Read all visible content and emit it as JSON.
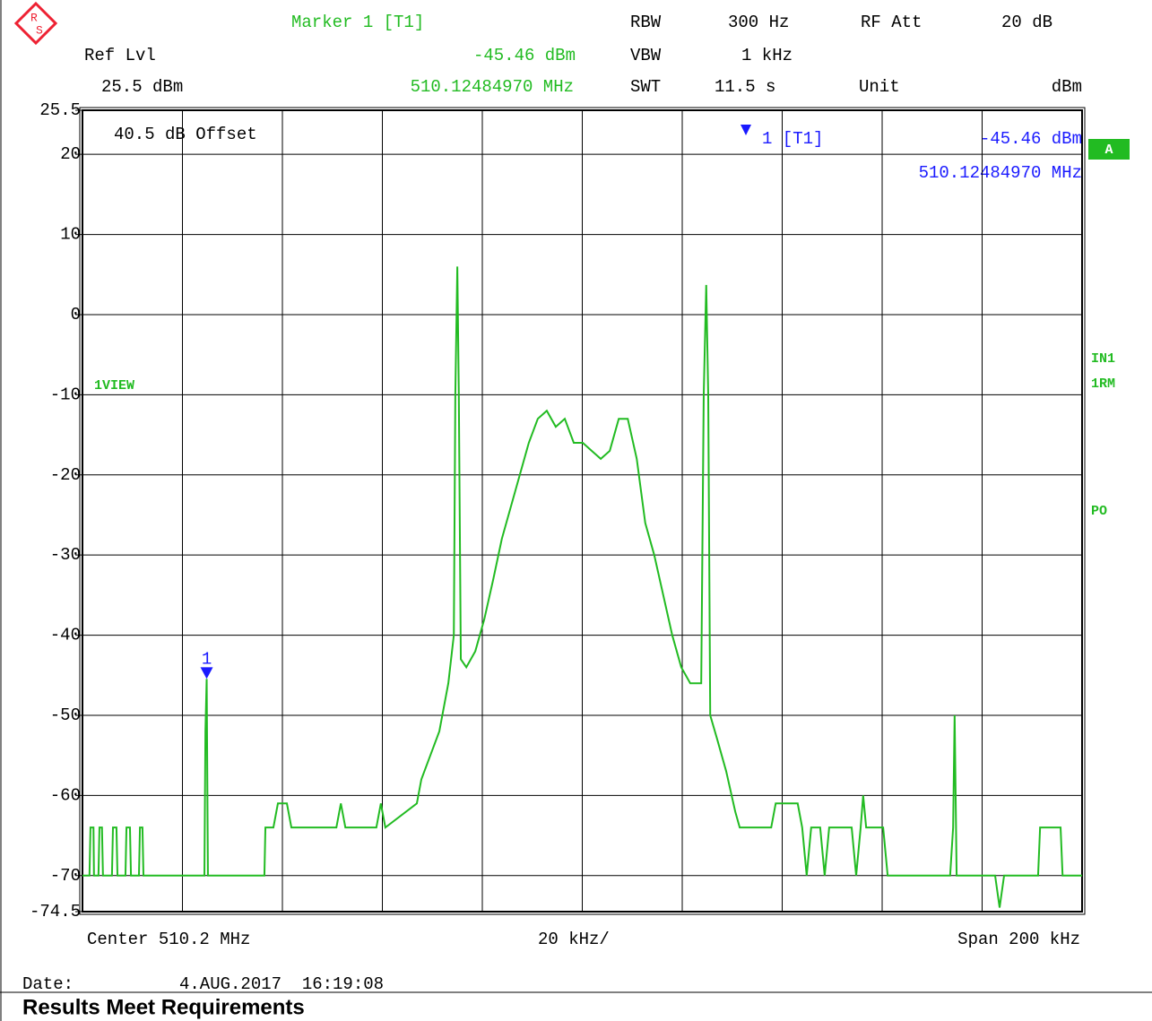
{
  "header": {
    "logo": [
      "R",
      "S"
    ],
    "marker_title": "Marker 1 [T1]",
    "rbw_label": "RBW",
    "rbw": "300 Hz",
    "rfatt_label": "RF Att",
    "rfatt": "20 dB",
    "ref_label": "Ref Lvl",
    "marker_level": "-45.46 dBm",
    "vbw_label": "VBW",
    "vbw": "1 kHz",
    "ref_level": "25.5 dBm",
    "marker_freq": "510.12484970 MHz",
    "swt_label": "SWT",
    "swt": "11.5 s",
    "unit_label": "Unit",
    "unit": "dBm"
  },
  "chart_data": {
    "type": "line",
    "color": "#22bb22",
    "grid": true,
    "offset_note": "40.5 dB Offset",
    "trace_label": "1VIEW",
    "side_labels": [
      "A",
      "IN1",
      "1RM",
      "PO"
    ],
    "marker_info": {
      "name": "1 [T1]",
      "level": "-45.46 dBm",
      "freq": "510.12484970 MHz"
    },
    "marker": {
      "label": "1",
      "x": 510.1248497,
      "value": -45.46,
      "color": "#1a1aff"
    },
    "xlim": [
      510.1,
      510.3
    ],
    "ylim": [
      -74.5,
      25.5
    ],
    "yticks": [
      25.5,
      20,
      10,
      0,
      -10,
      -20,
      -30,
      -40,
      -50,
      -60,
      -70,
      -74.5
    ],
    "x_center": "Center 510.2 MHz",
    "x_div": "20 kHz/",
    "x_span": "Span 200 kHz",
    "x": [
      510.1,
      510.1014,
      510.1016,
      510.1022,
      510.1023,
      510.1032,
      510.1034,
      510.1039,
      510.1041,
      510.1059,
      510.1061,
      510.1068,
      510.107,
      510.1086,
      510.1088,
      510.1095,
      510.1097,
      510.1113,
      510.1115,
      510.112,
      510.1122,
      510.1244,
      510.1246,
      510.12485,
      510.1251,
      510.1364,
      510.1366,
      510.1382,
      510.1391,
      510.1409,
      510.1418,
      510.1508,
      510.1517,
      510.1526,
      510.1588,
      510.1597,
      510.1606,
      510.1669,
      510.1678,
      510.1696,
      510.1714,
      510.1732,
      510.1743,
      510.1746,
      510.175,
      510.1753,
      510.1757,
      510.1768,
      510.1786,
      510.1804,
      510.1822,
      510.1839,
      510.1857,
      510.1875,
      510.1893,
      510.1911,
      510.1929,
      510.1947,
      510.1965,
      510.1983,
      510.2001,
      510.2019,
      510.2037,
      510.2055,
      510.2073,
      510.2091,
      510.2109,
      510.2126,
      510.2144,
      510.2162,
      510.218,
      510.2198,
      510.2216,
      510.2238,
      510.2243,
      510.2248,
      510.2252,
      510.2256,
      510.227,
      510.2288,
      510.2306,
      510.2315,
      510.2378,
      510.2387,
      510.2431,
      510.244,
      510.2449,
      510.2458,
      510.2476,
      510.2485,
      510.2494,
      510.2539,
      510.2548,
      510.2557,
      510.2562,
      510.2568,
      510.2602,
      510.2611,
      510.2736,
      510.2742,
      510.2745,
      510.2749,
      510.2826,
      510.2835,
      510.2844,
      510.2912,
      510.2916,
      510.2957,
      510.2961,
      510.3
    ],
    "values": [
      -70,
      -70,
      -64,
      -64,
      -70,
      -70,
      -64,
      -64,
      -70,
      -70,
      -64,
      -64,
      -70,
      -70,
      -64,
      -64,
      -70,
      -70,
      -64,
      -64,
      -70,
      -70,
      -52,
      -45.46,
      -70,
      -70,
      -64,
      -64,
      -61,
      -61,
      -64,
      -64,
      -61,
      -64,
      -64,
      -61,
      -64,
      -61,
      -58,
      -55,
      -52,
      -46,
      -40,
      -10,
      6,
      -10,
      -43,
      -44,
      -42,
      -38,
      -33,
      -28,
      -24,
      -20,
      -16,
      -13,
      -12,
      -14,
      -13,
      -16,
      -16,
      -17,
      -18,
      -17,
      -13,
      -13,
      -18,
      -26,
      -30,
      -35,
      -40,
      -44,
      -46,
      -46,
      -10,
      3.7,
      -10,
      -50,
      -53,
      -57,
      -62,
      -64,
      -64,
      -61,
      -61,
      -64,
      -70,
      -64,
      -64,
      -70,
      -64,
      -64,
      -70,
      -64,
      -60,
      -64,
      -64,
      -70,
      -70,
      -64,
      -50,
      -70,
      -70,
      -74,
      -70,
      -70,
      -64,
      -64,
      -70,
      -70
    ]
  },
  "footer": {
    "date_label": "Date:",
    "date": "4.AUG.2017  16:19:08",
    "result": "Results Meet Requirements"
  }
}
